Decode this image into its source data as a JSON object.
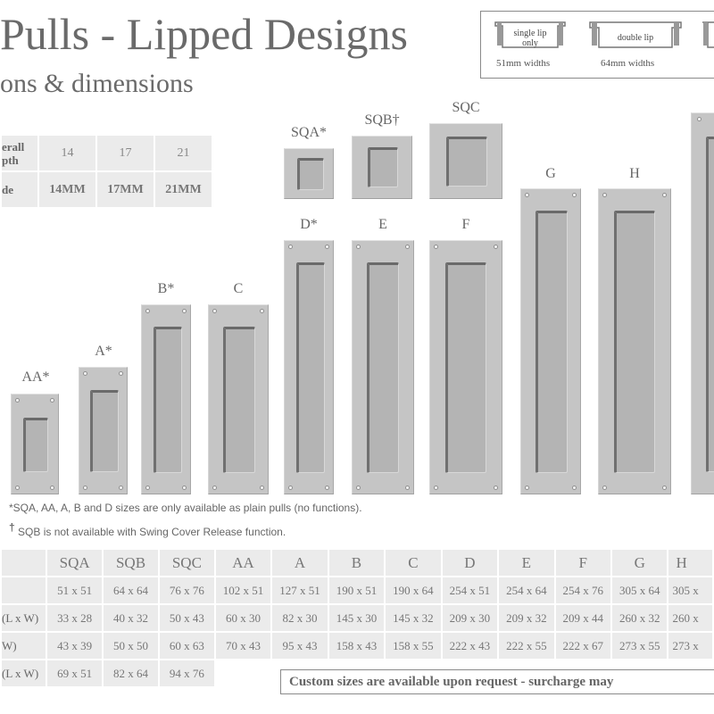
{
  "title": "Pulls - Lipped Designs",
  "subtitle": "ons & dimensions",
  "lip_legend": [
    {
      "text": "single lip only",
      "caption": "51mm widths"
    },
    {
      "text": "double lip",
      "caption": "64mm widths"
    }
  ],
  "depth_table": {
    "header1": "erall pth",
    "header2": "de",
    "depths": [
      "14",
      "17",
      "21"
    ],
    "codes": [
      "14MM",
      "17MM",
      "21MM"
    ]
  },
  "pulls": [
    {
      "label": "AA*"
    },
    {
      "label": "A*"
    },
    {
      "label": "B*"
    },
    {
      "label": "C"
    },
    {
      "label": "SQA*"
    },
    {
      "label": "SQB†"
    },
    {
      "label": "SQC"
    },
    {
      "label": "D*"
    },
    {
      "label": "E"
    },
    {
      "label": "F"
    },
    {
      "label": "G"
    },
    {
      "label": "H"
    }
  ],
  "notes": {
    "note1": "*SQA, AA, A, B and D sizes are only available as plain pulls (no functions).",
    "note2_mark": "†",
    "note2": " SQB is not available with Swing Cover Release function."
  },
  "size_table": {
    "columns": [
      "SQA",
      "SQB",
      "SQC",
      "AA",
      "A",
      "B",
      "C",
      "D",
      "E",
      "F",
      "G",
      "H"
    ],
    "rows": [
      {
        "label": "",
        "values": [
          "51 x 51",
          "64 x 64",
          "76 x 76",
          "102 x 51",
          "127 x 51",
          "190 x 51",
          "190 x 64",
          "254 x 51",
          "254 x 64",
          "254 x 76",
          "305 x 64",
          "305 x"
        ]
      },
      {
        "label": "(L x W)",
        "values": [
          "33 x 28",
          "40 x 32",
          "50 x 43",
          "60 x 30",
          "82 x 30",
          "145 x 30",
          "145 x 32",
          "209 x 30",
          "209 x 32",
          "209 x 44",
          "260 x 32",
          "260 x"
        ]
      },
      {
        "label": "W)",
        "values": [
          "43 x 39",
          "50 x 50",
          "60 x 63",
          "70 x 43",
          "95 x 43",
          "158 x 43",
          "158 x 55",
          "222 x 43",
          "222 x 55",
          "222 x 67",
          "273 x 55",
          "273 x"
        ]
      },
      {
        "label": "(L x W)",
        "values": [
          "69 x 51",
          "82 x 64",
          "94 x 76"
        ]
      }
    ]
  },
  "custom_note": "Custom sizes are available upon request - surcharge may"
}
